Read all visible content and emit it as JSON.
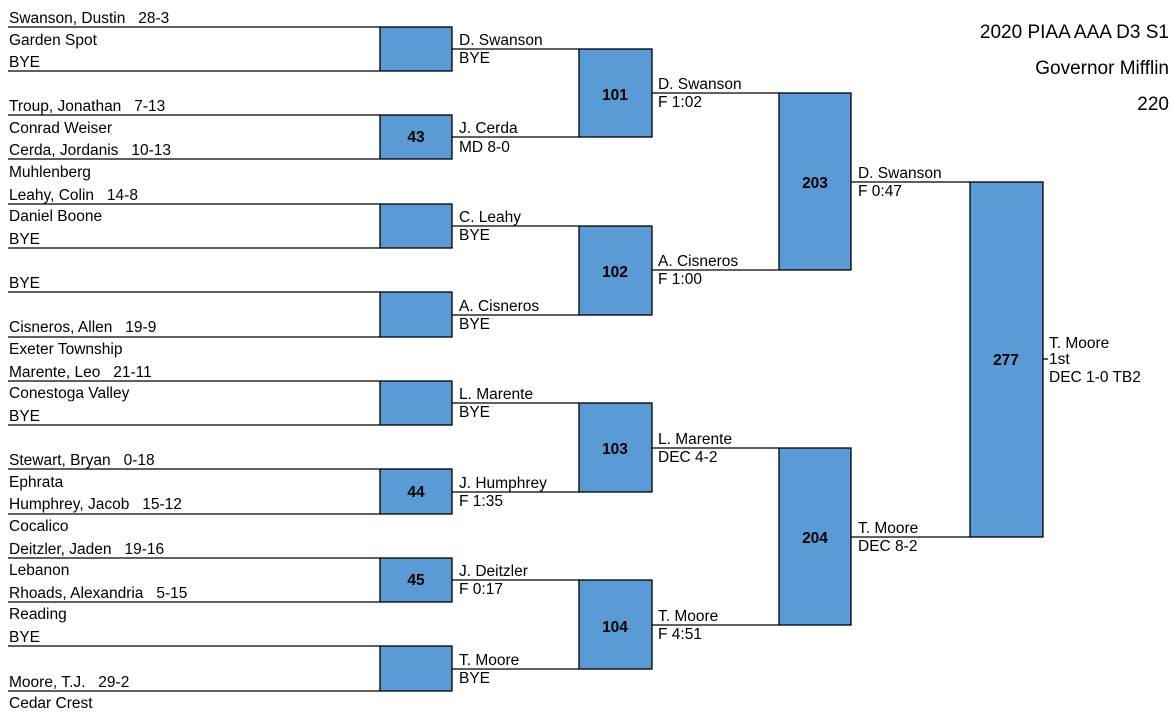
{
  "title": {
    "line1": "2020 PIAA AAA D3 S1",
    "line2": "Governor Mifflin",
    "line3": "220"
  },
  "colors": {
    "box_fill": "#5B9BD5",
    "line": "#000000",
    "text": "#000000"
  },
  "first_round": [
    {
      "top": "Swanson, Dustin   28-3",
      "top_school": "Garden Spot",
      "bottom": "BYE",
      "bottom_school": "",
      "bout": ""
    },
    {
      "top": "Troup, Jonathan   7-13",
      "top_school": "Conrad Weiser",
      "bottom": "Cerda, Jordanis   10-13",
      "bottom_school": "Muhlenberg",
      "bout": "43"
    },
    {
      "top": "Leahy, Colin   14-8",
      "top_school": "Daniel Boone",
      "bottom": "BYE",
      "bottom_school": "",
      "bout": ""
    },
    {
      "top": "BYE",
      "top_school": "",
      "bottom": "Cisneros, Allen   19-9",
      "bottom_school": "Exeter Township",
      "bout": ""
    },
    {
      "top": "Marente, Leo   21-11",
      "top_school": "Conestoga Valley",
      "bottom": "BYE",
      "bottom_school": "",
      "bout": ""
    },
    {
      "top": "Stewart, Bryan   0-18",
      "top_school": "Ephrata",
      "bottom": "Humphrey, Jacob   15-12",
      "bottom_school": "Cocalico",
      "bout": "44"
    },
    {
      "top": "Deitzler, Jaden   19-16",
      "top_school": "Lebanon",
      "bottom": "Rhoads, Alexandria   5-15",
      "bottom_school": "Reading",
      "bout": "45"
    },
    {
      "top": "BYE",
      "top_school": "",
      "bottom": "Moore, T.J.   29-2",
      "bottom_school": "Cedar Crest",
      "bout": ""
    }
  ],
  "quarterfinals": [
    {
      "bout": "101",
      "top": "D. Swanson",
      "top_result": "BYE",
      "bottom": "J. Cerda",
      "bottom_result": "MD 8-0"
    },
    {
      "bout": "102",
      "top": "C. Leahy",
      "top_result": "BYE",
      "bottom": "A. Cisneros",
      "bottom_result": "BYE"
    },
    {
      "bout": "103",
      "top": "L. Marente",
      "top_result": "BYE",
      "bottom": "J. Humphrey",
      "bottom_result": "F 1:35"
    },
    {
      "bout": "104",
      "top": "J. Deitzler",
      "top_result": "F 0:17",
      "bottom": "T. Moore",
      "bottom_result": "BYE"
    }
  ],
  "semifinals": [
    {
      "bout": "203",
      "top": "D. Swanson",
      "top_result": "F 1:02",
      "bottom": "A. Cisneros",
      "bottom_result": "F 1:00"
    },
    {
      "bout": "204",
      "top": "L. Marente",
      "top_result": "DEC 4-2",
      "bottom": "T. Moore",
      "bottom_result": "F 4:51"
    }
  ],
  "final": {
    "bout": "277",
    "top": "D. Swanson",
    "top_result": "F 0:47",
    "bottom": "T. Moore",
    "bottom_result": "DEC 8-2"
  },
  "champion": {
    "name": "T. Moore",
    "place": "1st",
    "result": "DEC 1-0 TB2"
  }
}
